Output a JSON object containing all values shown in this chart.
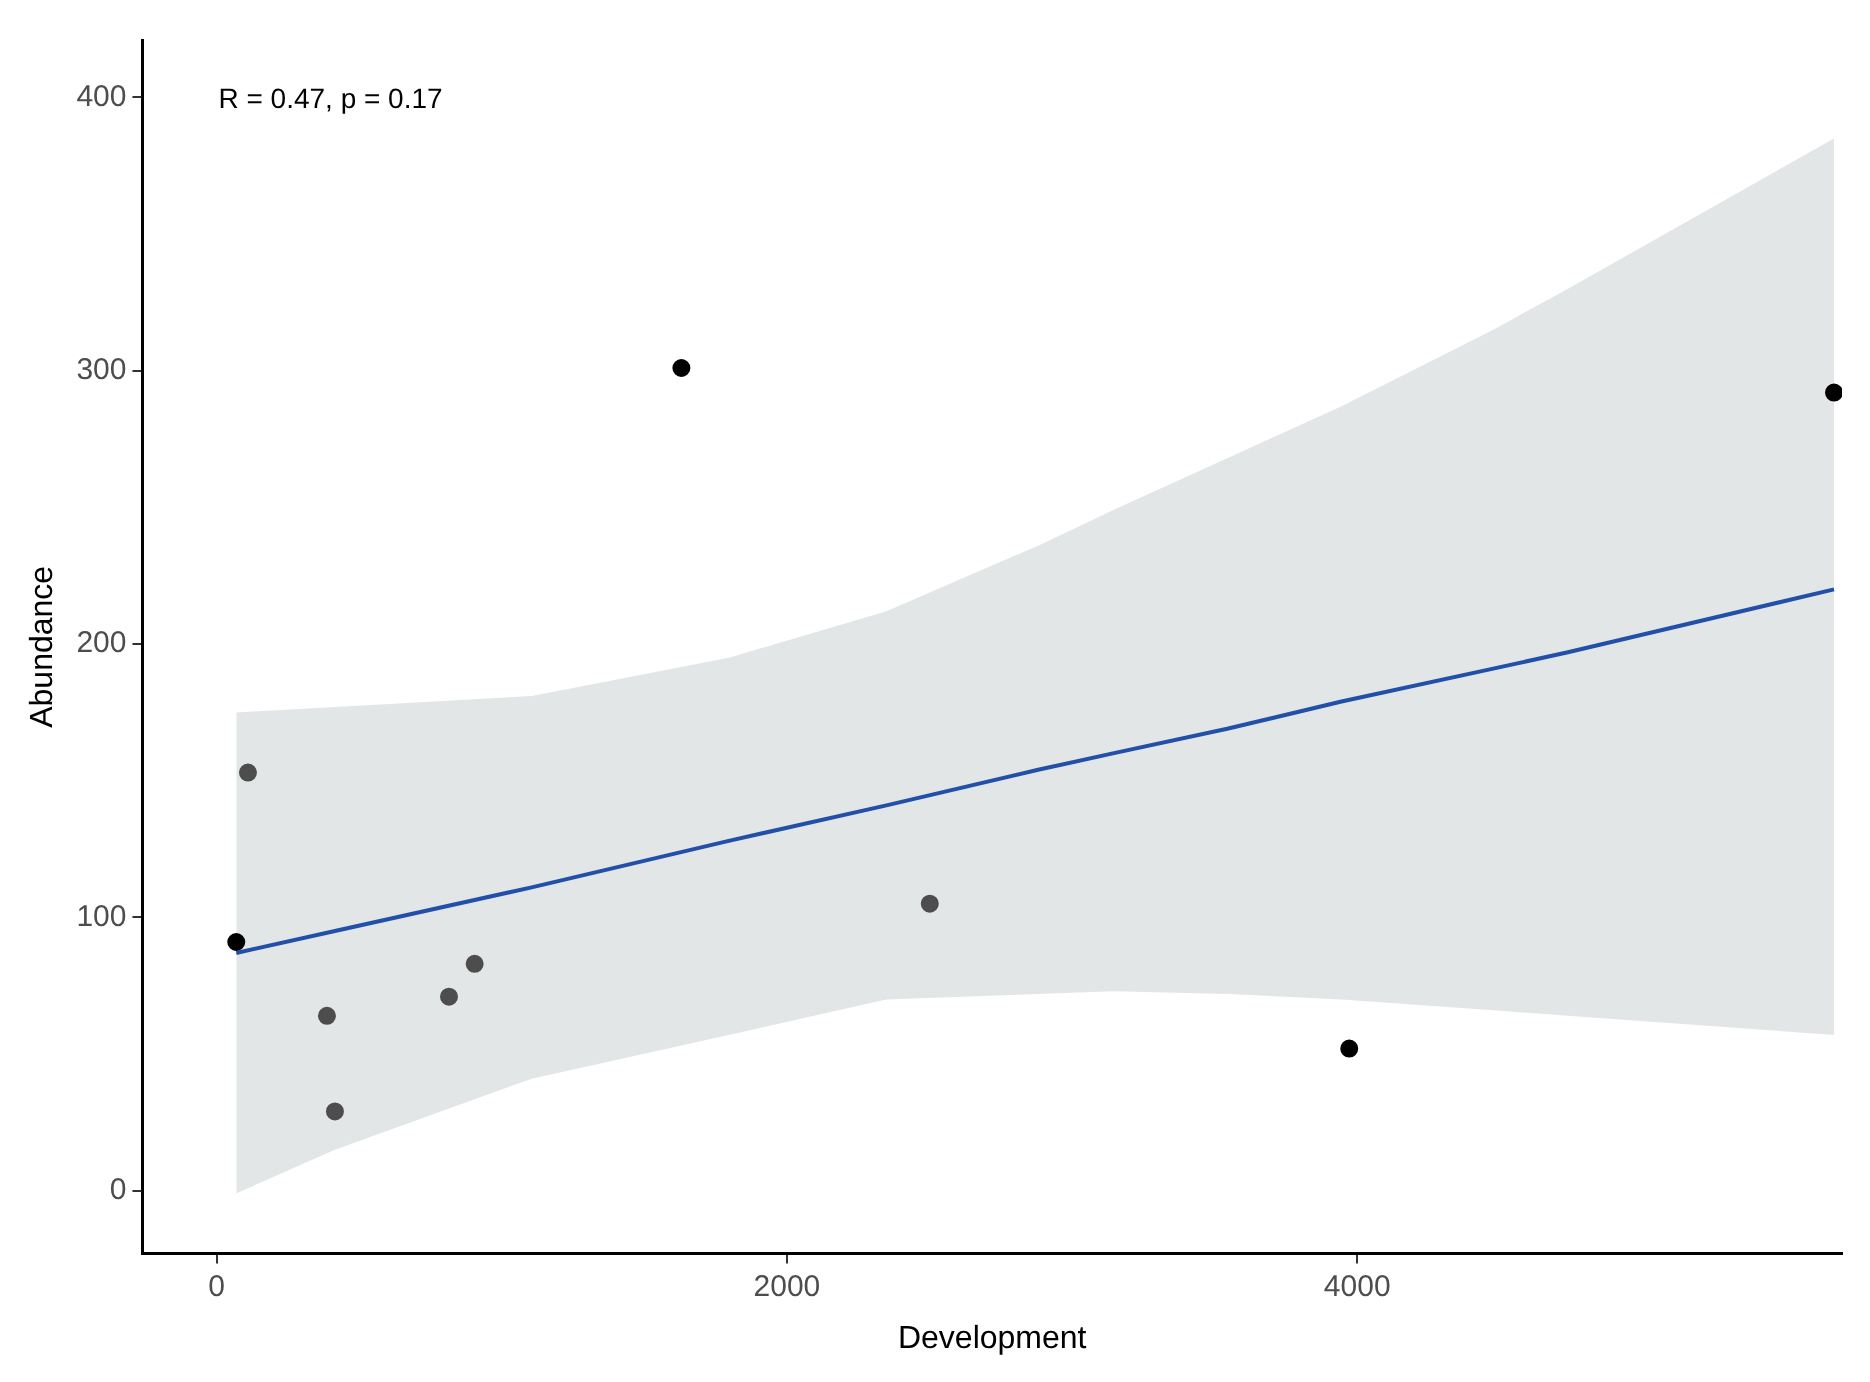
{
  "chart_data": {
    "type": "scatter",
    "xlabel": "Development",
    "ylabel": "Abundance",
    "annotations": [
      "R = 0.47, p = 0.17"
    ],
    "xlim": [
      -260,
      5700
    ],
    "xticks": [
      0,
      2000,
      4000
    ],
    "ylim": [
      -23,
      421
    ],
    "yticks": [
      0,
      100,
      200,
      300,
      400
    ],
    "grid": false,
    "legend": false,
    "marker": "circle",
    "series": [
      {
        "x": [
          69,
          110,
          387,
          415,
          815,
          905,
          1630,
          2501,
          3972,
          5672
        ],
        "values": [
          91,
          153,
          64,
          29,
          71,
          83,
          301,
          105,
          52,
          292
        ],
        "colors": [
          "#000000",
          "#4d4d4d",
          "#4d4d4d",
          "#4d4d4d",
          "#4d4d4d",
          "#4d4d4d",
          "#000000",
          "#4d4d4d",
          "#000000",
          "#000000"
        ]
      },
      {
        "type": "line",
        "color": "#2250a8",
        "x": [
          69,
          415,
          1105,
          1796,
          2349,
          2881,
          3143,
          3544,
          3945,
          4477,
          4739,
          5672
        ],
        "values": [
          87,
          95,
          111,
          128,
          141,
          154,
          160,
          169,
          179,
          191,
          197,
          220
        ],
        "lower": [
          -1,
          15,
          41,
          57,
          70,
          72,
          73,
          72,
          70,
          66,
          64,
          57
        ],
        "upper": [
          175,
          177,
          181,
          195,
          212,
          236,
          249,
          268,
          287,
          315,
          330,
          385
        ],
        "marker": "none"
      }
    ]
  }
}
